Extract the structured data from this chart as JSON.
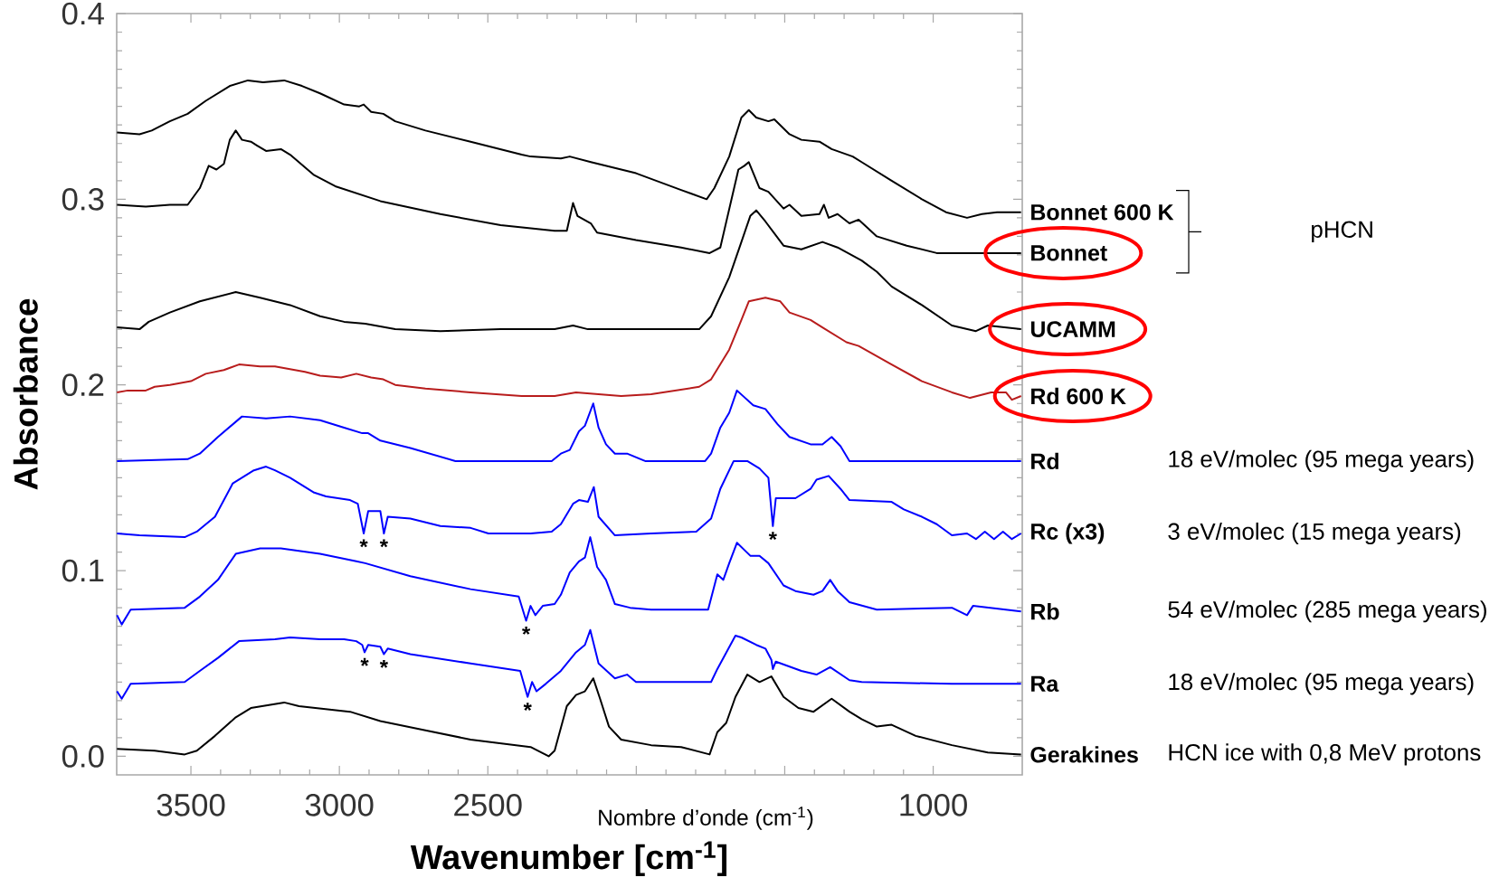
{
  "chart_data": {
    "type": "line",
    "xlabel": "Wavenumber [cm$^{-1}$]",
    "ylabel": "Absorbance",
    "xlim": [
      3750,
      700
    ],
    "ylim": [
      -0.01,
      0.4
    ],
    "xticks": [
      3500,
      3000,
      {
        "value": 2500,
        "label": "2500"
      },
      {
        "value": 2000,
        "label": null
      },
      {
        "value": 1500,
        "label": null
      },
      1000
    ],
    "yticks": [
      {
        "value": 0,
        "label": "0.0"
      },
      0.1,
      0.2,
      0.3,
      0.4
    ],
    "line_style": "solid",
    "series": [
      {
        "name": "Bonnet 600 K",
        "color": "#000000",
        "x": [
          3749,
          3673,
          3632,
          3571,
          3511,
          3450,
          3369,
          3308,
          3257,
          3186,
          3126,
          3065,
          2984,
          2933,
          2918,
          2893,
          2852,
          2812,
          2710,
          2558,
          2386,
          2356,
          2254,
          2224,
          2153,
          2001,
          1849,
          1763,
          1737,
          1687,
          1646,
          1621,
          1596,
          1555,
          1535,
          1484,
          1444,
          1383,
          1342,
          1271,
          1241,
          1140,
          1038,
          957,
          886,
          836,
          785,
          704
        ],
        "values": [
          0.336,
          0.335,
          0.337,
          0.342,
          0.346,
          0.353,
          0.361,
          0.364,
          0.363,
          0.364,
          0.361,
          0.357,
          0.351,
          0.35,
          0.351,
          0.347,
          0.346,
          0.342,
          0.337,
          0.331,
          0.324,
          0.323,
          0.322,
          0.323,
          0.32,
          0.314,
          0.305,
          0.3,
          0.306,
          0.323,
          0.344,
          0.348,
          0.344,
          0.342,
          0.343,
          0.335,
          0.332,
          0.331,
          0.327,
          0.323,
          0.32,
          0.31,
          0.3,
          0.293,
          0.29,
          0.292,
          0.293,
          0.293
        ]
      },
      {
        "name": "Bonnet",
        "color": "#000000",
        "x": [
          3749,
          3652,
          3571,
          3511,
          3470,
          3440,
          3414,
          3389,
          3369,
          3349,
          3328,
          3298,
          3278,
          3247,
          3197,
          3166,
          3085,
          3014,
          2862,
          2660,
          2457,
          2275,
          2234,
          2213,
          2198,
          2153,
          2132,
          2001,
          1849,
          1753,
          1717,
          1656,
          1636,
          1621,
          1585,
          1555,
          1504,
          1484,
          1444,
          1383,
          1368,
          1352,
          1322,
          1282,
          1251,
          1190,
          1089,
          988,
          836,
          704
        ],
        "values": [
          0.297,
          0.296,
          0.297,
          0.297,
          0.306,
          0.318,
          0.316,
          0.319,
          0.332,
          0.337,
          0.332,
          0.331,
          0.329,
          0.326,
          0.327,
          0.324,
          0.313,
          0.307,
          0.299,
          0.292,
          0.286,
          0.283,
          0.283,
          0.298,
          0.291,
          0.287,
          0.282,
          0.278,
          0.274,
          0.271,
          0.274,
          0.316,
          0.318,
          0.32,
          0.306,
          0.304,
          0.295,
          0.297,
          0.291,
          0.292,
          0.297,
          0.29,
          0.292,
          0.287,
          0.289,
          0.28,
          0.275,
          0.271,
          0.271,
          0.271
        ]
      },
      {
        "name": "UCAMM",
        "color": "#000000",
        "x": [
          3749,
          3673,
          3642,
          3571,
          3470,
          3349,
          3267,
          3166,
          3065,
          2984,
          2913,
          2812,
          2660,
          2457,
          2275,
          2213,
          2163,
          1950,
          1788,
          1748,
          1687,
          1646,
          1616,
          1596,
          1565,
          1504,
          1444,
          1373,
          1322,
          1241,
          1190,
          1140,
          1038,
          937,
          856,
          816,
          704
        ],
        "values": [
          0.231,
          0.23,
          0.234,
          0.239,
          0.245,
          0.25,
          0.247,
          0.243,
          0.237,
          0.234,
          0.233,
          0.23,
          0.229,
          0.23,
          0.23,
          0.232,
          0.23,
          0.23,
          0.23,
          0.237,
          0.258,
          0.277,
          0.291,
          0.294,
          0.288,
          0.275,
          0.273,
          0.277,
          0.274,
          0.267,
          0.261,
          0.253,
          0.243,
          0.232,
          0.229,
          0.232,
          0.23
        ]
      },
      {
        "name": "Rd 600 K",
        "color": "#b81c1c",
        "x": [
          3749,
          3713,
          3652,
          3622,
          3571,
          3500,
          3450,
          3389,
          3338,
          3267,
          3217,
          3116,
          3065,
          2994,
          2943,
          2893,
          2852,
          2812,
          2710,
          2558,
          2386,
          2275,
          2203,
          2051,
          1950,
          1788,
          1748,
          1687,
          1646,
          1621,
          1565,
          1515,
          1484,
          1413,
          1373,
          1292,
          1251,
          1140,
          1038,
          937,
          876,
          805,
          755,
          735,
          704
        ],
        "values": [
          0.196,
          0.197,
          0.197,
          0.199,
          0.2,
          0.202,
          0.206,
          0.208,
          0.211,
          0.21,
          0.21,
          0.207,
          0.205,
          0.204,
          0.206,
          0.204,
          0.203,
          0.2,
          0.198,
          0.196,
          0.194,
          0.194,
          0.196,
          0.194,
          0.195,
          0.199,
          0.203,
          0.219,
          0.235,
          0.245,
          0.247,
          0.245,
          0.239,
          0.235,
          0.231,
          0.223,
          0.221,
          0.211,
          0.202,
          0.196,
          0.193,
          0.196,
          0.196,
          0.192,
          0.194
        ]
      },
      {
        "name": "Rd",
        "color": "#0000ff",
        "x": [
          3749,
          3511,
          3470,
          3409,
          3328,
          3247,
          3166,
          3065,
          2984,
          2923,
          2903,
          2862,
          2761,
          2609,
          2457,
          2285,
          2254,
          2224,
          2193,
          2173,
          2145,
          2127,
          2102,
          2072,
          2031,
          1970,
          1768,
          1748,
          1717,
          1687,
          1661,
          1606,
          1565,
          1525,
          1484,
          1413,
          1373,
          1342,
          1312,
          1282,
          1140,
          704
        ],
        "values": [
          0.159,
          0.16,
          0.163,
          0.172,
          0.183,
          0.182,
          0.183,
          0.181,
          0.177,
          0.174,
          0.174,
          0.17,
          0.166,
          0.159,
          0.159,
          0.159,
          0.163,
          0.165,
          0.175,
          0.178,
          0.19,
          0.177,
          0.168,
          0.163,
          0.163,
          0.159,
          0.159,
          0.163,
          0.177,
          0.185,
          0.197,
          0.189,
          0.187,
          0.179,
          0.172,
          0.168,
          0.168,
          0.172,
          0.167,
          0.159,
          0.159,
          0.159
        ]
      },
      {
        "name": "Rc (x3)",
        "color": "#0000ff",
        "x": [
          3749,
          3673,
          3521,
          3480,
          3419,
          3359,
          3288,
          3247,
          3217,
          3166,
          3085,
          3045,
          2964,
          2938,
          2918,
          2903,
          2862,
          2850,
          2837,
          2761,
          2660,
          2558,
          2498,
          2356,
          2285,
          2254,
          2213,
          2193,
          2163,
          2143,
          2127,
          2072,
          1950,
          1798,
          1748,
          1717,
          1672,
          1626,
          1585,
          1555,
          1540,
          1530,
          1464,
          1413,
          1393,
          1352,
          1312,
          1282,
          1140,
          1099,
          1038,
          988,
          937,
          886,
          856,
          826,
          795,
          765,
          735,
          704
        ],
        "values": [
          0.12,
          0.119,
          0.118,
          0.121,
          0.129,
          0.147,
          0.154,
          0.156,
          0.154,
          0.15,
          0.142,
          0.14,
          0.138,
          0.136,
          0.12,
          0.132,
          0.132,
          0.12,
          0.129,
          0.128,
          0.124,
          0.123,
          0.12,
          0.12,
          0.121,
          0.125,
          0.136,
          0.138,
          0.137,
          0.145,
          0.129,
          0.119,
          0.12,
          0.121,
          0.128,
          0.144,
          0.159,
          0.159,
          0.155,
          0.15,
          0.124,
          0.139,
          0.139,
          0.144,
          0.149,
          0.151,
          0.144,
          0.138,
          0.137,
          0.133,
          0.129,
          0.125,
          0.119,
          0.12,
          0.117,
          0.121,
          0.117,
          0.121,
          0.117,
          0.12
        ]
      },
      {
        "name": "Rb",
        "color": "#0000ff",
        "x": [
          3749,
          3733,
          3703,
          3521,
          3470,
          3409,
          3349,
          3267,
          3197,
          3065,
          2943,
          2913,
          2761,
          2558,
          2396,
          2371,
          2356,
          2340,
          2315,
          2275,
          2254,
          2224,
          2193,
          2173,
          2155,
          2132,
          2102,
          2072,
          2021,
          1950,
          1758,
          1727,
          1707,
          1687,
          1661,
          1616,
          1585,
          1555,
          1504,
          1464,
          1403,
          1373,
          1347,
          1322,
          1282,
          1190,
          937,
          886,
          866,
          704
        ],
        "values": [
          0.076,
          0.071,
          0.079,
          0.08,
          0.086,
          0.095,
          0.109,
          0.112,
          0.112,
          0.109,
          0.105,
          0.104,
          0.097,
          0.09,
          0.086,
          0.073,
          0.081,
          0.076,
          0.081,
          0.082,
          0.087,
          0.099,
          0.105,
          0.107,
          0.118,
          0.102,
          0.095,
          0.082,
          0.08,
          0.079,
          0.079,
          0.098,
          0.095,
          0.104,
          0.115,
          0.108,
          0.108,
          0.104,
          0.092,
          0.089,
          0.087,
          0.089,
          0.095,
          0.089,
          0.083,
          0.079,
          0.08,
          0.076,
          0.081,
          0.078
        ]
      },
      {
        "name": "Ra",
        "color": "#0000ff",
        "x": [
          3749,
          3733,
          3703,
          3521,
          3470,
          3409,
          3338,
          3217,
          3166,
          3065,
          2984,
          2943,
          2923,
          2915,
          2903,
          2862,
          2850,
          2837,
          2761,
          2558,
          2391,
          2366,
          2351,
          2336,
          2305,
          2254,
          2203,
          2173,
          2155,
          2127,
          2072,
          2031,
          2001,
          1748,
          1727,
          1666,
          1646,
          1596,
          1565,
          1545,
          1540,
          1530,
          1444,
          1393,
          1347,
          1282,
          1241,
          937,
          704
        ],
        "values": [
          0.035,
          0.031,
          0.039,
          0.04,
          0.046,
          0.053,
          0.062,
          0.063,
          0.064,
          0.063,
          0.063,
          0.062,
          0.06,
          0.056,
          0.06,
          0.059,
          0.055,
          0.058,
          0.055,
          0.05,
          0.046,
          0.032,
          0.04,
          0.035,
          0.039,
          0.046,
          0.056,
          0.06,
          0.068,
          0.05,
          0.042,
          0.044,
          0.04,
          0.04,
          0.047,
          0.065,
          0.064,
          0.06,
          0.058,
          0.052,
          0.047,
          0.051,
          0.046,
          0.044,
          0.048,
          0.041,
          0.04,
          0.039,
          0.039
        ]
      },
      {
        "name": "Gerakines",
        "color": "#000000",
        "x": [
          3749,
          3622,
          3521,
          3480,
          3419,
          3349,
          3298,
          3186,
          3136,
          2964,
          2862,
          2710,
          2558,
          2356,
          2295,
          2275,
          2234,
          2203,
          2173,
          2145,
          2122,
          2092,
          2051,
          1950,
          1849,
          1753,
          1727,
          1697,
          1666,
          1626,
          1585,
          1545,
          1504,
          1454,
          1403,
          1342,
          1282,
          1241,
          1190,
          1140,
          1059,
          937,
          816,
          704
        ],
        "values": [
          0.004,
          0.003,
          0.001,
          0.003,
          0.011,
          0.021,
          0.026,
          0.029,
          0.027,
          0.024,
          0.019,
          0.014,
          0.009,
          0.005,
          0.0,
          0.003,
          0.027,
          0.033,
          0.035,
          0.042,
          0.031,
          0.016,
          0.009,
          0.006,
          0.005,
          0.001,
          0.013,
          0.018,
          0.032,
          0.044,
          0.04,
          0.043,
          0.032,
          0.026,
          0.024,
          0.031,
          0.024,
          0.02,
          0.016,
          0.017,
          0.011,
          0.006,
          0.002,
          0.001
        ]
      }
    ],
    "annotations": [
      "pHCN",
      "18 eV/molec (95 mega years)",
      "3 eV/molec (15 mega years)",
      "54 eV/molec (285 mega years)",
      "18 eV/molec (95 mega years)",
      "HCN ice with 0,8 MeV protons",
      {
        "text": "*",
        "x": 2918,
        "y": 0.12
      },
      {
        "text": "*",
        "x": 2850,
        "y": 0.12
      },
      {
        "text": "*",
        "x": 1540,
        "y": 0.124
      },
      {
        "text": "*",
        "x": 2371,
        "y": 0.073
      },
      {
        "text": "*",
        "x": 2915,
        "y": 0.056
      },
      {
        "text": "*",
        "x": 2850,
        "y": 0.055
      },
      {
        "text": "*",
        "x": 2366,
        "y": 0.032
      },
      "Nombre d’onde (cm$^{-1}$)"
    ]
  }
}
